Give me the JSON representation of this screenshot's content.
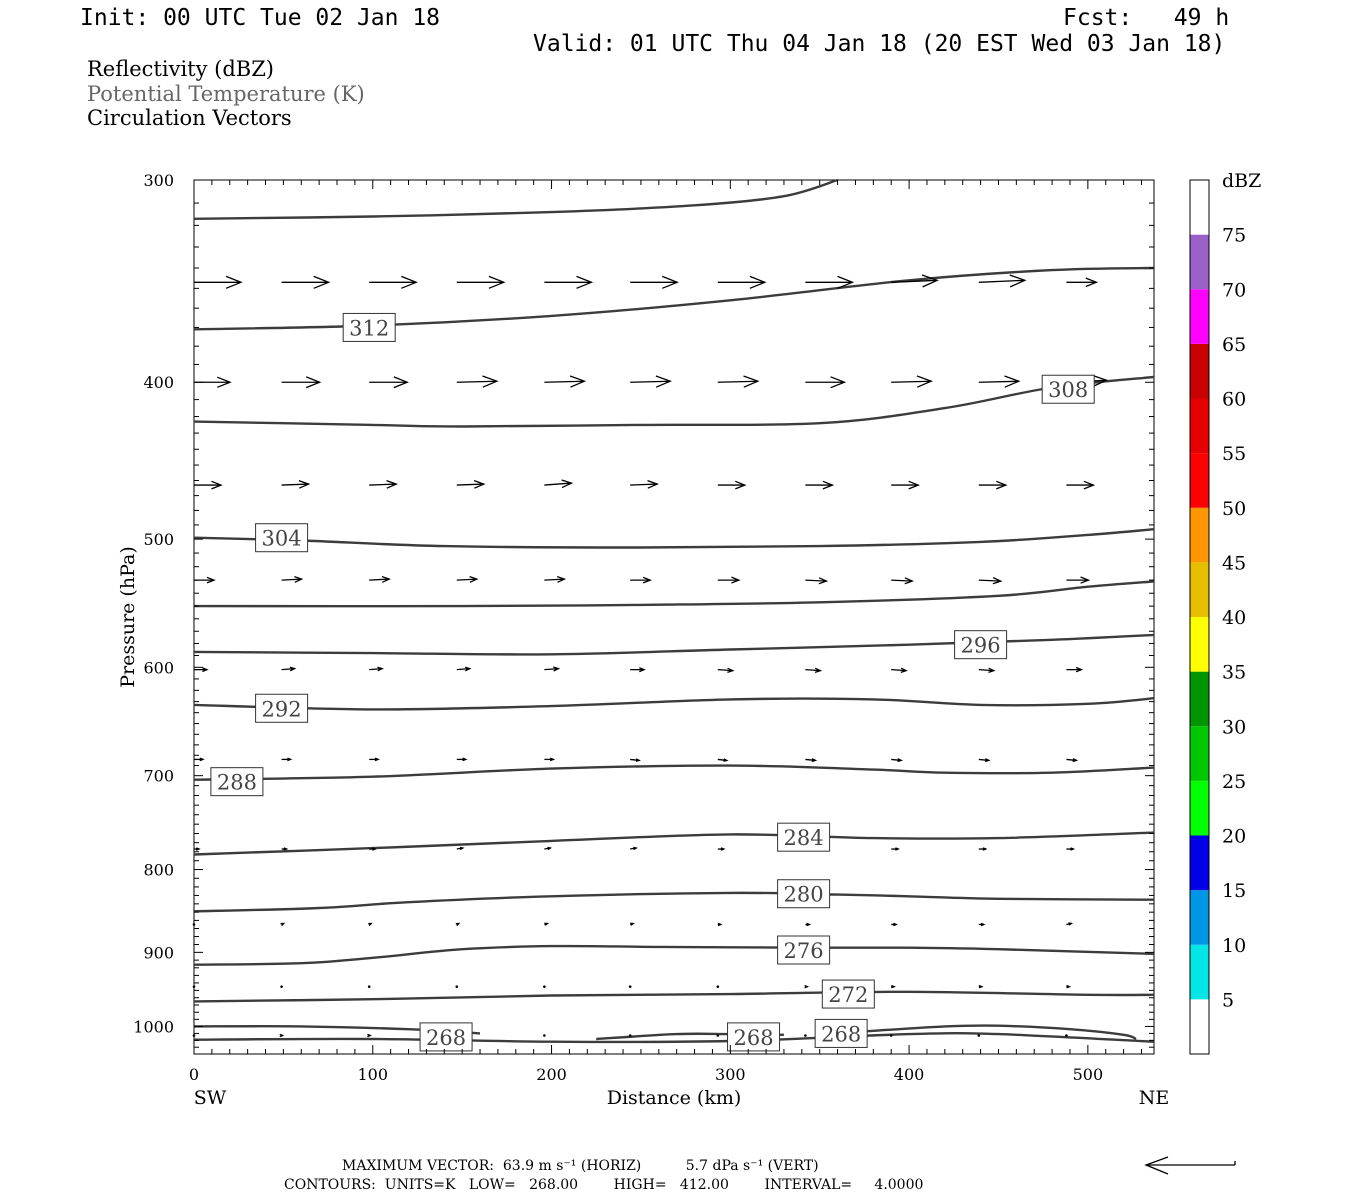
{
  "header": {
    "init": "Init: 00 UTC Tue 02 Jan 18",
    "fcst": "Fcst:   49 h",
    "valid": "Valid: 01 UTC Thu 04 Jan 18 (20 EST Wed 03 Jan 18)"
  },
  "legend": {
    "line1": "Reflectivity (dBZ)",
    "line2": "Potential Temperature (K)",
    "line3": "Circulation Vectors"
  },
  "footer": {
    "line1": "MAXIMUM VECTOR:  63.9 m s⁻¹ (HORIZ)          5.7 dPa s⁻¹ (VERT)",
    "line2": "CONTOURS:  UNITS=K   LOW=   268.00        HIGH=   412.00        INTERVAL=     4.0000"
  },
  "colorbar": {
    "title": "dBZ",
    "levels": [
      5,
      10,
      15,
      20,
      25,
      30,
      35,
      40,
      45,
      50,
      55,
      60,
      65,
      70,
      75
    ],
    "colors": [
      "#ffffff",
      "#00e6e6",
      "#0096e6",
      "#0000e6",
      "#00ff00",
      "#00c800",
      "#009600",
      "#ffff00",
      "#e6be00",
      "#ff9600",
      "#ff0000",
      "#e60000",
      "#c80000",
      "#ff00ff",
      "#9b5fc8",
      "#ffffff"
    ]
  },
  "chart_data": {
    "type": "contour",
    "xlabel": "Distance (km)",
    "ylabel": "Pressure (hPa)",
    "x_range": [
      0,
      537
    ],
    "y_range": [
      300,
      1040
    ],
    "y_log": true,
    "x_ticks": [
      0,
      100,
      200,
      300,
      400,
      500
    ],
    "y_ticks": [
      300,
      400,
      500,
      600,
      700,
      800,
      900,
      1000
    ],
    "x_end_labels": {
      "left": "SW",
      "right": "NE"
    },
    "contours": [
      {
        "level": "",
        "points": [
          [
            0,
            317
          ],
          [
            100,
            316
          ],
          [
            200,
            314
          ],
          [
            280,
            311
          ],
          [
            330,
            307
          ],
          [
            360,
            300
          ]
        ]
      },
      {
        "level": "312",
        "label_at": [
          98,
          370
        ],
        "points": [
          [
            0,
            371
          ],
          [
            100,
            369
          ],
          [
            200,
            364
          ],
          [
            300,
            356
          ],
          [
            400,
            346
          ],
          [
            480,
            341
          ],
          [
            537,
            340
          ]
        ]
      },
      {
        "level": "308",
        "label_at": [
          489,
          404
        ],
        "points": [
          [
            0,
            423
          ],
          [
            100,
            425
          ],
          [
            150,
            426
          ],
          [
            250,
            425
          ],
          [
            350,
            424
          ],
          [
            420,
            415
          ],
          [
            480,
            403
          ],
          [
            537,
            397
          ]
        ]
      },
      {
        "level": "304",
        "label_at": [
          49,
          499
        ],
        "points": [
          [
            0,
            499
          ],
          [
            60,
            501
          ],
          [
            140,
            505
          ],
          [
            250,
            506
          ],
          [
            350,
            505
          ],
          [
            440,
            502
          ],
          [
            500,
            497
          ],
          [
            537,
            493
          ]
        ]
      },
      {
        "level": "",
        "points": [
          [
            0,
            550
          ],
          [
            150,
            550
          ],
          [
            250,
            549
          ],
          [
            350,
            547
          ],
          [
            450,
            542
          ],
          [
            500,
            535
          ],
          [
            537,
            531
          ]
        ]
      },
      {
        "level": "296",
        "label_at": [
          440,
          581
        ],
        "points": [
          [
            0,
            587
          ],
          [
            100,
            588
          ],
          [
            200,
            589
          ],
          [
            300,
            585
          ],
          [
            400,
            581
          ],
          [
            480,
            577
          ],
          [
            537,
            573
          ]
        ]
      },
      {
        "level": "292",
        "label_at": [
          49,
          636
        ],
        "points": [
          [
            0,
            633
          ],
          [
            100,
            637
          ],
          [
            200,
            634
          ],
          [
            300,
            628
          ],
          [
            380,
            628
          ],
          [
            440,
            633
          ],
          [
            500,
            632
          ],
          [
            537,
            627
          ]
        ]
      },
      {
        "level": "288",
        "label_at": [
          24,
          706
        ],
        "points": [
          [
            0,
            704
          ],
          [
            100,
            701
          ],
          [
            200,
            693
          ],
          [
            300,
            690
          ],
          [
            380,
            694
          ],
          [
            420,
            697
          ],
          [
            480,
            697
          ],
          [
            537,
            692
          ]
        ]
      },
      {
        "level": "284",
        "label_at": [
          341,
          764
        ],
        "points": [
          [
            0,
            783
          ],
          [
            100,
            776
          ],
          [
            200,
            768
          ],
          [
            300,
            761
          ],
          [
            380,
            765
          ],
          [
            450,
            765
          ],
          [
            537,
            759
          ]
        ]
      },
      {
        "level": "280",
        "label_at": [
          341,
          828
        ],
        "points": [
          [
            0,
            849
          ],
          [
            70,
            845
          ],
          [
            120,
            838
          ],
          [
            200,
            831
          ],
          [
            300,
            827
          ],
          [
            360,
            829
          ],
          [
            400,
            831
          ],
          [
            450,
            834
          ],
          [
            537,
            835
          ]
        ]
      },
      {
        "level": "276",
        "label_at": [
          341,
          897
        ],
        "points": [
          [
            0,
            916
          ],
          [
            60,
            914
          ],
          [
            100,
            907
          ],
          [
            150,
            896
          ],
          [
            200,
            892
          ],
          [
            260,
            893
          ],
          [
            340,
            894
          ],
          [
            400,
            894
          ],
          [
            450,
            896
          ],
          [
            537,
            902
          ]
        ]
      },
      {
        "level": "272",
        "label_at": [
          366,
          955
        ],
        "points": [
          [
            0,
            965
          ],
          [
            100,
            962
          ],
          [
            200,
            957
          ],
          [
            300,
            955
          ],
          [
            400,
            952
          ],
          [
            500,
            956
          ],
          [
            537,
            956
          ]
        ]
      },
      {
        "level": "268",
        "label_at": [
          141,
          1015
        ],
        "points": [
          [
            0,
            1000
          ],
          [
            60,
            1000
          ],
          [
            120,
            1004
          ],
          [
            160,
            1010
          ]
        ]
      },
      {
        "level": "268",
        "label_at": [
          313,
          1015
        ],
        "points": [
          [
            225,
            1018
          ],
          [
            270,
            1011
          ],
          [
            300,
            1011
          ],
          [
            330,
            1012
          ]
        ]
      },
      {
        "level": "268",
        "label_at": [
          362,
          1010
        ],
        "points": [
          [
            370,
            1008
          ],
          [
            420,
            1000
          ],
          [
            450,
            999
          ],
          [
            490,
            1004
          ],
          [
            520,
            1012
          ],
          [
            527,
            1018
          ]
        ]
      },
      {
        "level": "",
        "points": [
          [
            0,
            1019
          ],
          [
            100,
            1018
          ],
          [
            200,
            1022
          ],
          [
            300,
            1021
          ],
          [
            400,
            1011
          ],
          [
            450,
            1011
          ],
          [
            537,
            1022
          ]
        ]
      }
    ],
    "vector_columns_km": [
      0,
      49,
      98,
      147,
      196,
      244,
      293,
      342,
      390,
      439,
      488
    ],
    "vector_rows": [
      {
        "p": 347,
        "vectors": [
          [
            47,
            0
          ],
          [
            47,
            0
          ],
          [
            47,
            0
          ],
          [
            47,
            0
          ],
          [
            47,
            0
          ],
          [
            47,
            0
          ],
          [
            47,
            0
          ],
          [
            47,
            0
          ],
          [
            46,
            -2
          ],
          [
            46,
            -2
          ],
          [
            30,
            0
          ]
        ]
      },
      {
        "p": 400,
        "vectors": [
          [
            36,
            0
          ],
          [
            38,
            0
          ],
          [
            38,
            0
          ],
          [
            40,
            -1
          ],
          [
            40,
            -1
          ],
          [
            40,
            -1
          ],
          [
            40,
            -1
          ],
          [
            39,
            0
          ],
          [
            40,
            -1
          ],
          [
            40,
            -1
          ],
          [
            40,
            -2
          ]
        ]
      },
      {
        "p": 463,
        "vectors": [
          [
            27,
            0
          ],
          [
            27,
            -1
          ],
          [
            27,
            -1
          ],
          [
            27,
            -1
          ],
          [
            27,
            -2
          ],
          [
            27,
            -1
          ],
          [
            27,
            0
          ],
          [
            27,
            0
          ],
          [
            27,
            0
          ],
          [
            27,
            0
          ],
          [
            27,
            0
          ]
        ]
      },
      {
        "p": 530,
        "vectors": [
          [
            20,
            0
          ],
          [
            20,
            -1
          ],
          [
            20,
            -1
          ],
          [
            20,
            -1
          ],
          [
            20,
            -1
          ],
          [
            20,
            0
          ],
          [
            21,
            0
          ],
          [
            21,
            1
          ],
          [
            21,
            1
          ],
          [
            22,
            1
          ],
          [
            22,
            0
          ]
        ]
      },
      {
        "p": 602,
        "vectors": [
          [
            13,
            0
          ],
          [
            13,
            -1
          ],
          [
            13,
            -1
          ],
          [
            13,
            -1
          ],
          [
            14,
            -1
          ],
          [
            14,
            0
          ],
          [
            15,
            1
          ],
          [
            15,
            1
          ],
          [
            15,
            1
          ],
          [
            15,
            1
          ],
          [
            15,
            0
          ]
        ]
      },
      {
        "p": 684,
        "vectors": [
          [
            9,
            0
          ],
          [
            9,
            0
          ],
          [
            9,
            0
          ],
          [
            9,
            0
          ],
          [
            9,
            0
          ],
          [
            9,
            1
          ],
          [
            9,
            1
          ],
          [
            10,
            1
          ],
          [
            10,
            1
          ],
          [
            10,
            1
          ],
          [
            10,
            1
          ]
        ]
      },
      {
        "p": 777,
        "vectors": [
          [
            5,
            0
          ],
          [
            5,
            0
          ],
          [
            6,
            0
          ],
          [
            6,
            -1
          ],
          [
            6,
            -1
          ],
          [
            6,
            -1
          ],
          [
            6,
            0
          ],
          [
            6,
            0
          ],
          [
            7,
            0
          ],
          [
            7,
            0
          ],
          [
            7,
            0
          ]
        ]
      },
      {
        "p": 865,
        "vectors": [
          [
            0,
            0
          ],
          [
            2,
            -1
          ],
          [
            2,
            -1
          ],
          [
            2,
            -1
          ],
          [
            3,
            -1
          ],
          [
            3,
            -1
          ],
          [
            3,
            0
          ],
          [
            4,
            0
          ],
          [
            5,
            0
          ],
          [
            5,
            0
          ],
          [
            5,
            -1
          ]
        ]
      },
      {
        "p": 945,
        "vectors": [
          [
            0,
            0
          ],
          [
            0,
            0
          ],
          [
            0,
            0
          ],
          [
            0,
            0
          ],
          [
            0,
            0
          ],
          [
            0,
            0
          ],
          [
            0,
            0
          ],
          [
            2,
            0
          ],
          [
            3,
            0
          ],
          [
            3,
            0
          ],
          [
            3,
            0
          ]
        ]
      },
      {
        "p": 1013,
        "vectors": [
          [
            0,
            0
          ],
          [
            1,
            0
          ],
          [
            1,
            0
          ],
          [
            0,
            0
          ],
          [
            0,
            0
          ],
          [
            0,
            0
          ],
          [
            0,
            0
          ],
          [
            0,
            0
          ],
          [
            0,
            0
          ],
          [
            0,
            0
          ],
          [
            0,
            0
          ]
        ]
      }
    ]
  }
}
